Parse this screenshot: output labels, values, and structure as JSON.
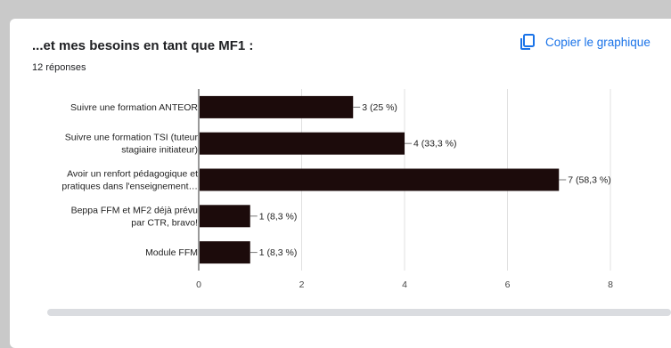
{
  "question_title": "...et mes besoins en tant que MF1 :",
  "responses_label": "12 réponses",
  "copy_button_label": "Copier le graphique",
  "icon": "copy-icon",
  "colors": {
    "bar": "#1c0b0b",
    "accent": "#1a73e8",
    "grid": "#e0e0e0"
  },
  "chart_data": {
    "type": "bar",
    "orientation": "horizontal",
    "title": "",
    "xlabel": "",
    "ylabel": "",
    "xlim": [
      0,
      8
    ],
    "x_ticks": [
      0,
      2,
      4,
      6,
      8
    ],
    "grid": true,
    "categories": [
      [
        "Suivre une formation ANTEOR"
      ],
      [
        "Suivre une formation TSI (tuteur",
        "stagiaire initiateur)"
      ],
      [
        "Avoir un renfort pédagogique et",
        "pratiques dans l'enseignement…"
      ],
      [
        "Beppa FFM et MF2 déjà prévu",
        "par CTR, bravo!"
      ],
      [
        "Module FFM"
      ]
    ],
    "values": [
      3,
      4,
      7,
      1,
      1
    ],
    "data_labels": [
      "3 (25 %)",
      "4 (33,3 %)",
      "7 (58,3 %)",
      "1 (8,3 %)",
      "1 (8,3 %)"
    ]
  }
}
